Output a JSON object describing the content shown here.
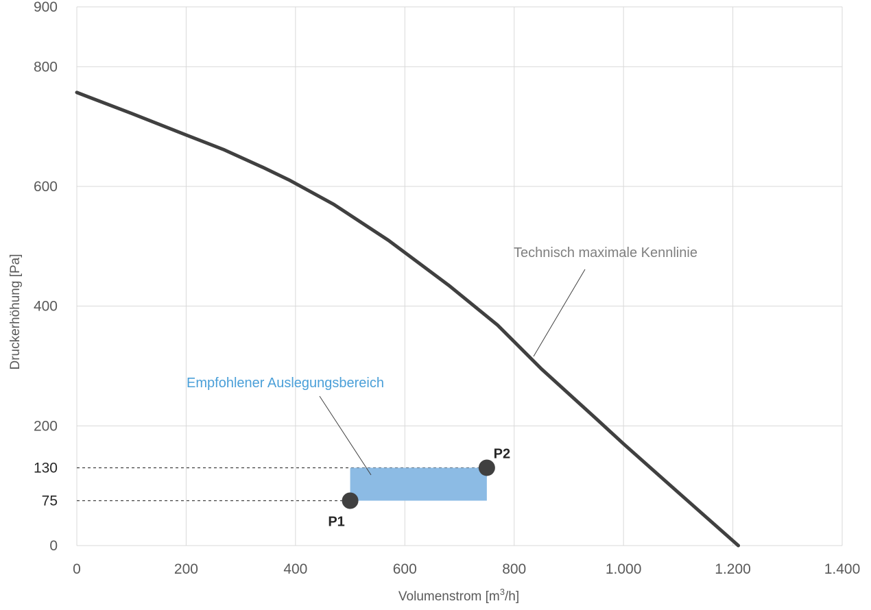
{
  "chart_data": {
    "type": "line",
    "title": "",
    "xlabel": "Volumenstrom [m³/h]",
    "xlabel_main": "Volumenstrom [m",
    "xlabel_sup": "3",
    "xlabel_end": "/h]",
    "ylabel": "Druckerhöhung [Pa]",
    "xlim": [
      0,
      1400
    ],
    "ylim": [
      0,
      900
    ],
    "grid": true,
    "x_ticks": [
      0,
      200,
      400,
      600,
      800,
      1000,
      1200,
      1400
    ],
    "x_tick_labels": [
      "0",
      "200",
      "400",
      "600",
      "800",
      "1.000",
      "1.200",
      "1.400"
    ],
    "y_ticks": [
      0,
      200,
      400,
      600,
      800,
      900
    ],
    "y_tick_labels": [
      "0",
      "200",
      "400",
      "600",
      "800",
      "900"
    ],
    "y_extra_ticks": [
      75,
      130
    ],
    "y_extra_tick_labels": [
      "75",
      "130"
    ],
    "series": [
      {
        "name": "Technisch maximale Kennlinie",
        "color": "#404040",
        "x": [
          0,
          100,
          200,
          270,
          340,
          390,
          470,
          570,
          680,
          770,
          850,
          950,
          1000,
          1080,
          1210
        ],
        "y": [
          757,
          722,
          686,
          661,
          632,
          610,
          570,
          510,
          435,
          368,
          295,
          212,
          170,
          105,
          0
        ]
      }
    ],
    "region": {
      "name": "Empfohlener Auslegungsbereich",
      "x": [
        500,
        750
      ],
      "y": [
        75,
        130
      ],
      "color": "#8cbbe4"
    },
    "points": [
      {
        "label": "P1",
        "x": 500,
        "y": 75
      },
      {
        "label": "P2",
        "x": 750,
        "y": 130
      }
    ],
    "annotations": [
      {
        "text": "Technisch maximale Kennlinie",
        "color": "#7f7f7f"
      },
      {
        "text": "Empfohlener Auslegungsbereich",
        "color": "#4a9fd8"
      }
    ]
  }
}
